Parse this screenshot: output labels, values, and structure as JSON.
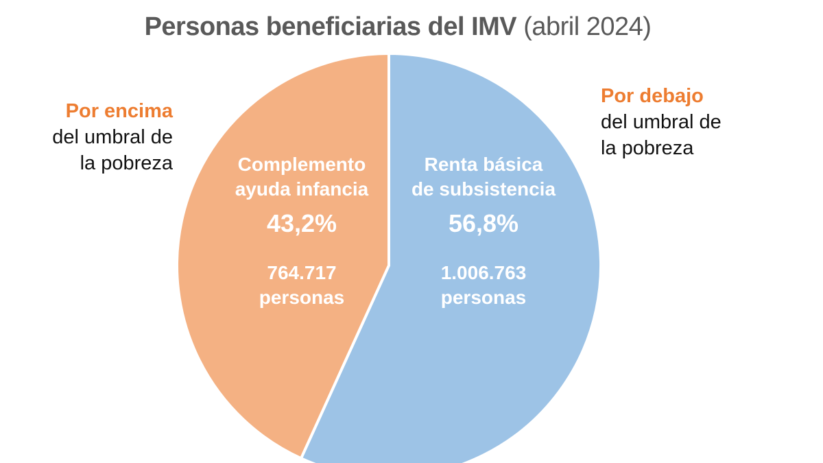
{
  "chart_data": {
    "type": "pie",
    "title": "Personas beneficiarias del IMV",
    "subtitle": "(abril 2024)",
    "slices": [
      {
        "label_line1": "Renta básica",
        "label_line2": "de subsistencia",
        "percent_label": "56,8%",
        "value": 56.8,
        "count_label": "1.006.763",
        "unit_label": "personas",
        "color": "#9DC3E6"
      },
      {
        "label_line1": "Complemento",
        "label_line2": "ayuda infancia",
        "percent_label": "43,2%",
        "value": 43.2,
        "count_label": "764.717",
        "unit_label": "personas",
        "color": "#F4B183"
      }
    ],
    "start": "top, clockwise"
  },
  "annotations": {
    "left": {
      "highlight": "Por encima",
      "line2": "del umbral de",
      "line3": "la pobreza"
    },
    "right": {
      "highlight": "Por debajo",
      "line2": "del umbral de",
      "line3": "la pobreza"
    },
    "highlight_color": "#ED7D31"
  }
}
